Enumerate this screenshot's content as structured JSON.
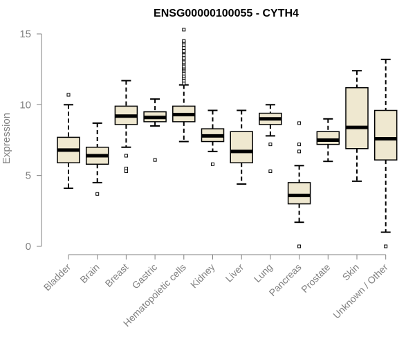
{
  "chart_data": {
    "type": "boxplot",
    "title": "ENSG00000100055 - CYTH4",
    "ylabel": "Expression",
    "xlabel": "",
    "ylim": [
      0,
      15
    ],
    "yticks": [
      0,
      5,
      10,
      15
    ],
    "box_color": "#efe8d0",
    "line_color": "#000000",
    "axis_color": "#808080",
    "categories": [
      "Bladder",
      "Brain",
      "Breast",
      "Gastric",
      "Hematopoietic cells",
      "Kidney",
      "Liver",
      "Lung",
      "Pancreas",
      "Prostate",
      "Skin",
      "Unknown / Other"
    ],
    "boxes": [
      {
        "low": 4.1,
        "q1": 5.9,
        "median": 6.8,
        "q3": 7.7,
        "high": 10.0,
        "outliers": [
          10.7
        ]
      },
      {
        "low": 4.5,
        "q1": 5.8,
        "median": 6.4,
        "q3": 7.0,
        "high": 8.7,
        "outliers": [
          3.7
        ]
      },
      {
        "low": 7.0,
        "q1": 8.6,
        "median": 9.2,
        "q3": 9.9,
        "high": 11.7,
        "outliers": [
          6.4,
          5.5,
          5.3
        ]
      },
      {
        "low": 8.5,
        "q1": 8.8,
        "median": 9.1,
        "q3": 9.5,
        "high": 10.4,
        "outliers": [
          6.1
        ]
      },
      {
        "low": 7.4,
        "q1": 8.8,
        "median": 9.3,
        "q3": 9.9,
        "high": 11.4,
        "outliers": [
          11.5,
          11.7,
          11.9,
          12.0,
          12.2,
          12.4,
          12.5,
          12.6,
          12.7,
          12.9,
          13.0,
          13.2,
          13.3,
          13.5,
          13.7,
          13.8,
          14.0,
          14.2,
          14.4,
          14.5,
          15.3
        ]
      },
      {
        "low": 6.7,
        "q1": 7.4,
        "median": 7.8,
        "q3": 8.3,
        "high": 9.6,
        "outliers": [
          5.8
        ]
      },
      {
        "low": 4.4,
        "q1": 5.9,
        "median": 6.7,
        "q3": 8.1,
        "high": 9.6,
        "outliers": []
      },
      {
        "low": 7.8,
        "q1": 8.6,
        "median": 9.0,
        "q3": 9.4,
        "high": 10.0,
        "outliers": [
          7.2,
          5.3
        ]
      },
      {
        "low": 1.7,
        "q1": 3.0,
        "median": 3.6,
        "q3": 4.5,
        "high": 5.7,
        "outliers": [
          8.7,
          7.2,
          6.7,
          0.0
        ]
      },
      {
        "low": 6.0,
        "q1": 7.2,
        "median": 7.5,
        "q3": 8.1,
        "high": 9.0,
        "outliers": []
      },
      {
        "low": 4.6,
        "q1": 6.9,
        "median": 8.4,
        "q3": 11.2,
        "high": 12.4,
        "outliers": []
      },
      {
        "low": 1.0,
        "q1": 6.1,
        "median": 7.6,
        "q3": 9.6,
        "high": 13.2,
        "outliers": [
          0.0
        ]
      }
    ]
  }
}
